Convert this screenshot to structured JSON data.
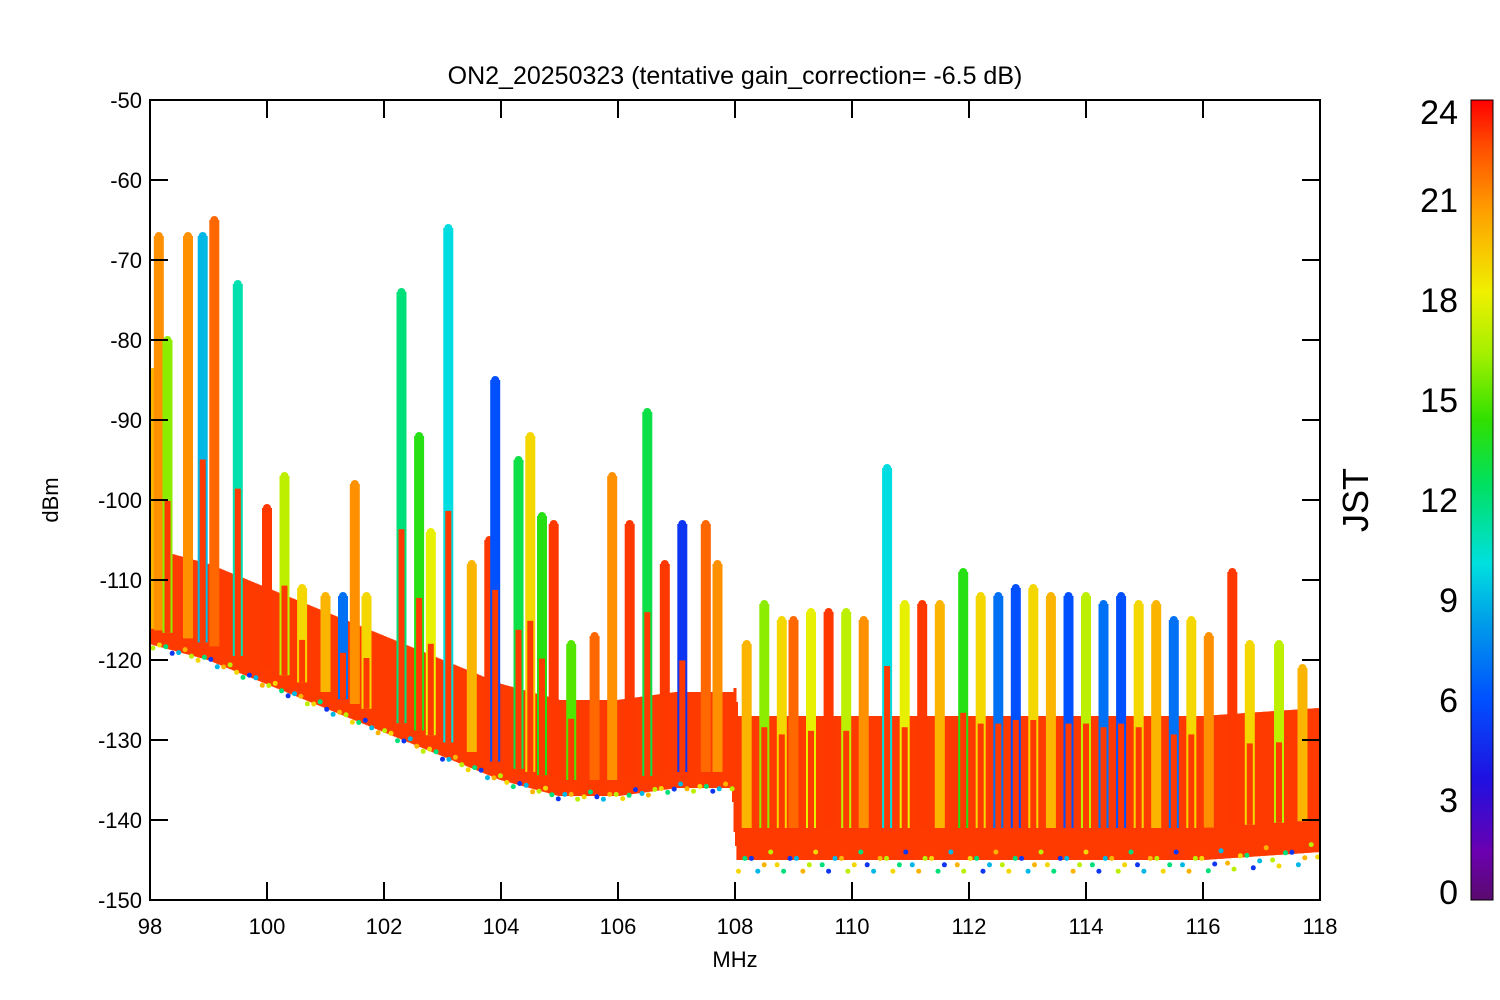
{
  "chart_data": {
    "type": "scatter",
    "title": "ON2_20250323 (tentative gain_correction= -6.5 dB)",
    "xlabel": "MHz",
    "ylabel": "dBm",
    "xlim": [
      98,
      118
    ],
    "ylim": [
      -150,
      -50
    ],
    "xticks": [
      98,
      100,
      102,
      104,
      106,
      108,
      110,
      112,
      114,
      116,
      118
    ],
    "yticks": [
      -50,
      -60,
      -70,
      -80,
      -90,
      -100,
      -110,
      -120,
      -130,
      -140,
      -150
    ],
    "colorbar": {
      "label": "JST",
      "range": [
        0,
        24
      ],
      "ticks": [
        0,
        3,
        6,
        9,
        12,
        15,
        18,
        21,
        24
      ],
      "colormap": "rainbow"
    },
    "noise_floor": [
      {
        "x": 98.0,
        "y": -116
      },
      {
        "x": 99.0,
        "y": -118
      },
      {
        "x": 100.0,
        "y": -121
      },
      {
        "x": 101.0,
        "y": -124
      },
      {
        "x": 102.0,
        "y": -127
      },
      {
        "x": 103.0,
        "y": -130
      },
      {
        "x": 104.0,
        "y": -133
      },
      {
        "x": 105.0,
        "y": -135
      },
      {
        "x": 106.0,
        "y": -135
      },
      {
        "x": 107.0,
        "y": -134
      },
      {
        "x": 107.95,
        "y": -134
      },
      {
        "x": 108.05,
        "y": -141
      },
      {
        "x": 110.0,
        "y": -141
      },
      {
        "x": 112.0,
        "y": -141
      },
      {
        "x": 114.0,
        "y": -141
      },
      {
        "x": 116.0,
        "y": -141
      },
      {
        "x": 118.0,
        "y": -140
      }
    ],
    "peaks": [
      {
        "x": 98.05,
        "y": -84,
        "jst": 20
      },
      {
        "x": 98.15,
        "y": -67,
        "jst": 21
      },
      {
        "x": 98.3,
        "y": -80,
        "jst": 16
      },
      {
        "x": 98.65,
        "y": -67,
        "jst": 21
      },
      {
        "x": 98.9,
        "y": -67,
        "jst": 9
      },
      {
        "x": 99.1,
        "y": -65,
        "jst": 22
      },
      {
        "x": 99.5,
        "y": -73,
        "jst": 11
      },
      {
        "x": 100.0,
        "y": -101,
        "jst": 23
      },
      {
        "x": 100.3,
        "y": -97,
        "jst": 17
      },
      {
        "x": 100.6,
        "y": -111,
        "jst": 19
      },
      {
        "x": 101.0,
        "y": -112,
        "jst": 20
      },
      {
        "x": 101.3,
        "y": -112,
        "jst": 7
      },
      {
        "x": 101.5,
        "y": -98,
        "jst": 21
      },
      {
        "x": 101.7,
        "y": -112,
        "jst": 19
      },
      {
        "x": 102.3,
        "y": -74,
        "jst": 12
      },
      {
        "x": 102.6,
        "y": -92,
        "jst": 14
      },
      {
        "x": 102.8,
        "y": -104,
        "jst": 18
      },
      {
        "x": 103.1,
        "y": -66,
        "jst": 10
      },
      {
        "x": 103.5,
        "y": -108,
        "jst": 20
      },
      {
        "x": 103.8,
        "y": -105,
        "jst": 23
      },
      {
        "x": 103.9,
        "y": -85,
        "jst": 6
      },
      {
        "x": 104.3,
        "y": -95,
        "jst": 13
      },
      {
        "x": 104.5,
        "y": -92,
        "jst": 19
      },
      {
        "x": 104.7,
        "y": -102,
        "jst": 14
      },
      {
        "x": 104.9,
        "y": -103,
        "jst": 23
      },
      {
        "x": 105.2,
        "y": -118,
        "jst": 15
      },
      {
        "x": 105.6,
        "y": -117,
        "jst": 22
      },
      {
        "x": 105.9,
        "y": -97,
        "jst": 21
      },
      {
        "x": 106.2,
        "y": -103,
        "jst": 23
      },
      {
        "x": 106.5,
        "y": -89,
        "jst": 13
      },
      {
        "x": 106.8,
        "y": -108,
        "jst": 23
      },
      {
        "x": 107.1,
        "y": -103,
        "jst": 5
      },
      {
        "x": 107.5,
        "y": -103,
        "jst": 22
      },
      {
        "x": 107.7,
        "y": -108,
        "jst": 21
      },
      {
        "x": 108.2,
        "y": -118,
        "jst": 20
      },
      {
        "x": 108.5,
        "y": -113,
        "jst": 16
      },
      {
        "x": 108.8,
        "y": -115,
        "jst": 19
      },
      {
        "x": 109.0,
        "y": -115,
        "jst": 22
      },
      {
        "x": 109.3,
        "y": -114,
        "jst": 18
      },
      {
        "x": 109.6,
        "y": -114,
        "jst": 23
      },
      {
        "x": 109.9,
        "y": -114,
        "jst": 17
      },
      {
        "x": 110.2,
        "y": -115,
        "jst": 21
      },
      {
        "x": 110.6,
        "y": -96,
        "jst": 10
      },
      {
        "x": 110.9,
        "y": -113,
        "jst": 18
      },
      {
        "x": 111.2,
        "y": -113,
        "jst": 23
      },
      {
        "x": 111.5,
        "y": -113,
        "jst": 20
      },
      {
        "x": 111.9,
        "y": -109,
        "jst": 14
      },
      {
        "x": 112.2,
        "y": -112,
        "jst": 19
      },
      {
        "x": 112.5,
        "y": -112,
        "jst": 7
      },
      {
        "x": 112.8,
        "y": -111,
        "jst": 6
      },
      {
        "x": 113.1,
        "y": -111,
        "jst": 19
      },
      {
        "x": 113.4,
        "y": -112,
        "jst": 20
      },
      {
        "x": 113.7,
        "y": -112,
        "jst": 6
      },
      {
        "x": 114.0,
        "y": -112,
        "jst": 17
      },
      {
        "x": 114.3,
        "y": -113,
        "jst": 7
      },
      {
        "x": 114.6,
        "y": -112,
        "jst": 6
      },
      {
        "x": 114.9,
        "y": -113,
        "jst": 19
      },
      {
        "x": 115.2,
        "y": -113,
        "jst": 20
      },
      {
        "x": 115.5,
        "y": -115,
        "jst": 7
      },
      {
        "x": 115.8,
        "y": -115,
        "jst": 19
      },
      {
        "x": 116.1,
        "y": -117,
        "jst": 21
      },
      {
        "x": 116.5,
        "y": -109,
        "jst": 23
      },
      {
        "x": 116.8,
        "y": -118,
        "jst": 19
      },
      {
        "x": 117.3,
        "y": -118,
        "jst": 17
      },
      {
        "x": 117.7,
        "y": -121,
        "jst": 20
      }
    ]
  }
}
